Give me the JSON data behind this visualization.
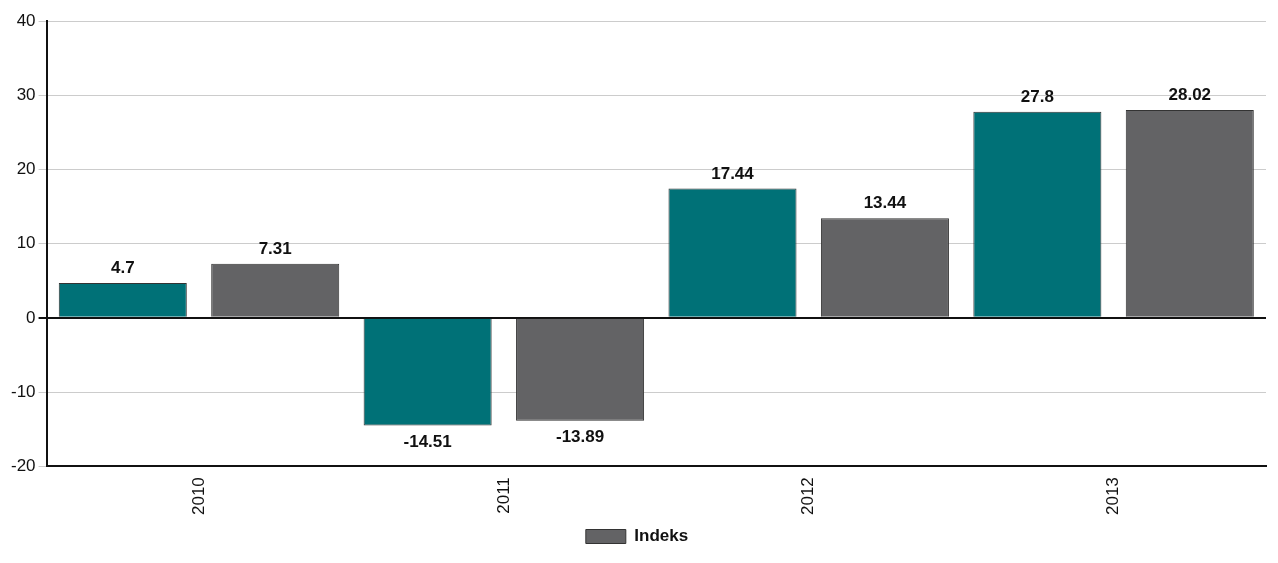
{
  "chart_data": {
    "type": "bar",
    "categories": [
      "2010",
      "2011",
      "2012",
      "2013"
    ],
    "series": [
      {
        "color": "#007177",
        "values": [
          4.7,
          -14.51,
          17.44,
          27.8
        ]
      },
      {
        "name": "Indeks",
        "color": "#636365",
        "values": [
          7.31,
          -13.89,
          13.44,
          28.02
        ]
      }
    ],
    "ylim": [
      -20,
      40
    ],
    "yticks": [
      -20,
      -10,
      0,
      10,
      20,
      30,
      40
    ],
    "grid": "y",
    "legend": "bottom",
    "data_labels": true
  }
}
